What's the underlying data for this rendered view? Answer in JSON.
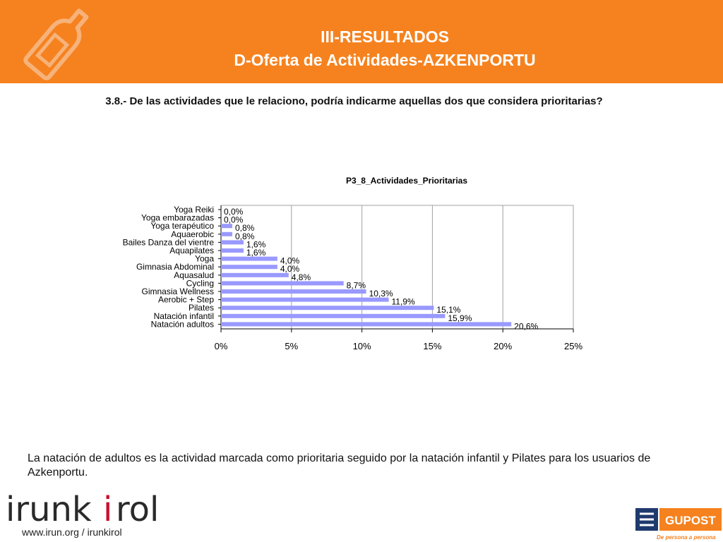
{
  "header": {
    "title_line1": "III-RESULTADOS",
    "title_line2": "D-Oferta de Actividades-AZKENPORTU",
    "icon": "bottle-icon"
  },
  "question": "3.8.- De las actividades que le relaciono, podría indicarme aquellas dos que considera prioritarias?",
  "chart_data": {
    "type": "bar",
    "orientation": "horizontal",
    "title": "P3_8_Actividades_Prioritarias",
    "categories": [
      "Yoga Reiki",
      "Yoga embarazadas",
      "Yoga terapéutico",
      "Aquaerobic",
      "Bailes Danza del vientre",
      "Aquapilates",
      "Yoga",
      "Gimnasia Abdominal",
      "Aquasalud",
      "Cycling",
      "Gimnasia Wellness",
      "Aerobic + Step",
      "Pilates",
      "Natación infantil",
      "Natación adultos"
    ],
    "values": [
      0.0,
      0.0,
      0.8,
      0.8,
      1.6,
      1.6,
      4.0,
      4.0,
      4.8,
      8.7,
      10.3,
      11.9,
      15.1,
      15.9,
      20.6
    ],
    "data_labels": [
      "0,0%",
      "0,0%",
      "0,8%",
      "0,8%",
      "1,6%",
      "1,6%",
      "4,0%",
      "4,0%",
      "4,8%",
      "8,7%",
      "10,3%",
      "11,9%",
      "15,1%",
      "15,9%",
      "20,6%"
    ],
    "xlim": [
      0,
      25
    ],
    "x_ticks": [
      "0%",
      "5%",
      "10%",
      "15%",
      "20%",
      "25%"
    ],
    "grid": true,
    "bar_color": "#9999ff",
    "xlabel": "",
    "ylabel": ""
  },
  "conclusion": "La natación de adultos es la actividad marcada como prioritaria seguido por la natación infantil y Pilates para los usuarios de Azkenportu.",
  "footer": {
    "brand_pre": "irunk",
    "brand_i": "i",
    "brand_post": "rol",
    "url": "www.irun.org / irunkirol",
    "partner_name": "GUPOST",
    "partner_tagline": "De persona a persona"
  },
  "colors": {
    "accent": "#f5821f",
    "bar": "#9999ff",
    "brand_dark": "#2a2a2a",
    "brand_red": "#c8102e"
  }
}
